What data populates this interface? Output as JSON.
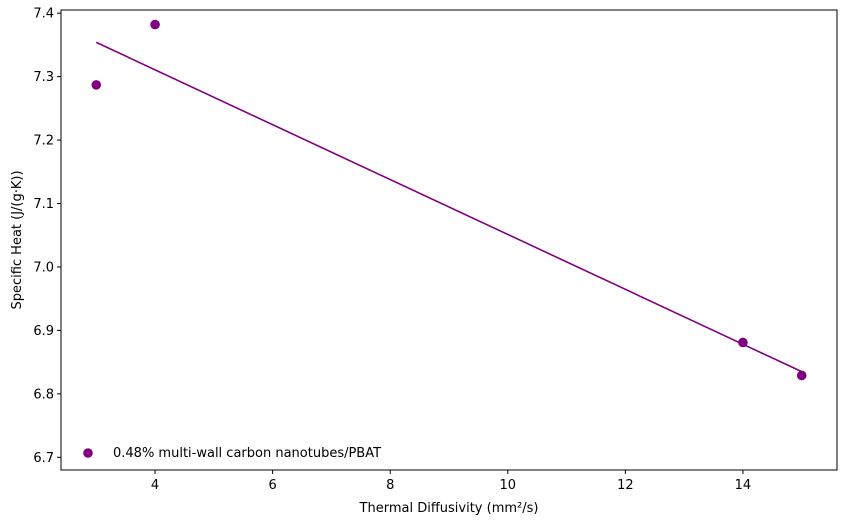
{
  "chart_data": {
    "type": "scatter",
    "title": "",
    "xlabel": "Thermal Diffusivity (mm²/s)",
    "ylabel": "Specific Heat (J/(g·K))",
    "xlim": [
      2.4,
      15.6
    ],
    "ylim": [
      6.68,
      7.405
    ],
    "xticks": [
      4,
      6,
      8,
      10,
      12,
      14
    ],
    "yticks": [
      6.7,
      6.8,
      6.9,
      7.0,
      7.1,
      7.2,
      7.3,
      7.4
    ],
    "xtick_labels": [
      "4",
      "6",
      "8",
      "10",
      "12",
      "14"
    ],
    "ytick_labels": [
      "6.7",
      "6.8",
      "6.9",
      "7.0",
      "7.1",
      "7.2",
      "7.3",
      "7.4"
    ],
    "grid": false,
    "legend_position": "lower-left",
    "series": [
      {
        "name": "0.48% multi-wall carbon nanotubes/PBAT",
        "color": "#800080",
        "marker": "circle",
        "points": [
          {
            "x": 3,
            "y": 7.287
          },
          {
            "x": 4,
            "y": 7.382
          },
          {
            "x": 14,
            "y": 6.881
          },
          {
            "x": 15,
            "y": 6.829
          }
        ]
      }
    ],
    "fit_line": {
      "color": "#800080",
      "x": [
        3,
        15
      ],
      "y": [
        7.354,
        6.835
      ]
    }
  }
}
